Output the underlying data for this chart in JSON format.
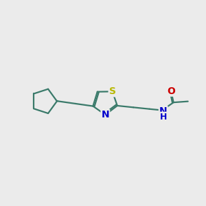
{
  "bg_color": "#ebebeb",
  "bond_color": "#3a7a6a",
  "bond_width": 1.6,
  "atom_colors": {
    "S": "#b8b800",
    "N": "#0000cc",
    "O": "#cc0000",
    "C": "#3a7a6a"
  },
  "font_size": 9,
  "xlim": [
    0,
    10
  ],
  "ylim": [
    2,
    8
  ]
}
